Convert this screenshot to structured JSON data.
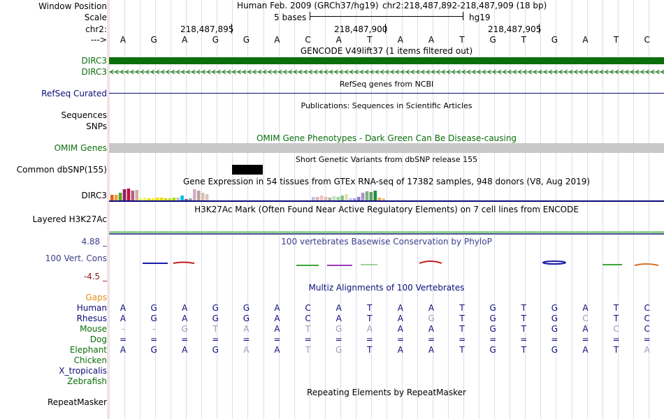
{
  "labels": {
    "window_position": "Window Position",
    "scale": "Scale",
    "chr": "chr2:",
    "arrow": "--->",
    "dirc3_a": "DIRC3",
    "dirc3_b": "DIRC3",
    "refseq": "RefSeq Curated",
    "sequences": "Sequences",
    "snps": "SNPs",
    "omim": "OMIM Genes",
    "common_dbsnp": "Common dbSNP(155)",
    "gtex_gene": "DIRC3",
    "h3k27ac": "Layered H3K27Ac",
    "cons_max": "4.88 _",
    "cons_label": "100 Vert. Cons",
    "cons_min": "-4.5 _"
  },
  "header": {
    "assembly": "Human Feb. 2009 (GRCh37/hg19)",
    "position": "chr2:218,487,892-218,487,909 (18 bp)",
    "scale_text": "5 bases",
    "scale_db": "hg19",
    "ticks": [
      "218,487,895",
      "218,487,900",
      "218,487,905"
    ]
  },
  "colors": {
    "gencode": "#0a6e0a",
    "refseq": "#0c0c78",
    "omim_bar": "#c8c8c8",
    "cons": "#3c3c8c",
    "species_label": "#0c0c78",
    "ape_label": "#0c0c78",
    "gaps": "#e0901c",
    "snp_block": "#000000"
  },
  "sequence": [
    "A",
    "G",
    "A",
    "G",
    "G",
    "A",
    "C",
    "A",
    "T",
    "A",
    "A",
    "T",
    "G",
    "T",
    "G",
    "A",
    "T",
    "C"
  ],
  "tracks": {
    "gencode_title": "GENCODE V49lift37 (1 items filtered out)",
    "refseq_title": "RefSeq genes from NCBI",
    "publications_title": "Publications: Sequences in Scientific Articles",
    "omim_title": "OMIM Gene Phenotypes - Dark Green Can Be Disease-causing",
    "dbsnp_title": "Short Genetic Variants from dbSNP release 155",
    "gtex_title": "Gene Expression in 54 tissues from GTEx RNA-seq of 17382 samples, 948 donors (V8, Aug 2019)",
    "h3k27ac_title": "H3K27Ac Mark (Often Found Near Active Regulatory Elements) on 7 cell lines from ENCODE",
    "phylop_title": "100 vertebrates Basewise Conservation by PhyloP",
    "multiz_title": "Multiz Alignments of 100 Vertebrates",
    "repeat_title": "Repeating Elements by RepeatMasker"
  },
  "alignment": {
    "gaps_label": "Gaps",
    "species": [
      {
        "name": "Human",
        "bases": [
          "A",
          "G",
          "A",
          "G",
          "G",
          "A",
          "C",
          "A",
          "T",
          "A",
          "A",
          "T",
          "G",
          "T",
          "G",
          "A",
          "T",
          "C"
        ],
        "dim": []
      },
      {
        "name": "Rhesus",
        "bases": [
          "A",
          "G",
          "A",
          "G",
          "G",
          "A",
          "C",
          "A",
          "T",
          "A",
          "G",
          "T",
          "G",
          "T",
          "G",
          "C",
          "T",
          "C"
        ],
        "dim": [
          10,
          15
        ]
      },
      {
        "name": "Mouse",
        "bases": [
          "-",
          "-",
          "G",
          "T",
          "A",
          "A",
          "T",
          "G",
          "A",
          "A",
          "A",
          "T",
          "G",
          "T",
          "G",
          "A",
          "C",
          "C"
        ],
        "dim": [
          0,
          1,
          2,
          3,
          4,
          6,
          7,
          8,
          16
        ]
      },
      {
        "name": "Dog",
        "bases": [
          "=",
          "=",
          "=",
          "=",
          "=",
          "=",
          "=",
          "=",
          "=",
          "=",
          "=",
          "=",
          "=",
          "=",
          "=",
          "=",
          "=",
          "="
        ],
        "dim": []
      },
      {
        "name": "Elephant",
        "bases": [
          "A",
          "G",
          "A",
          "G",
          "A",
          "A",
          "T",
          "G",
          "T",
          "A",
          "A",
          "T",
          "G",
          "T",
          "G",
          "A",
          "T",
          "A"
        ],
        "dim": [
          4,
          6,
          7,
          17
        ]
      },
      {
        "name": "Chicken",
        "bases": [],
        "dim": []
      },
      {
        "name": "X_tropicalis",
        "bases": [],
        "dim": []
      },
      {
        "name": "Zebrafish",
        "bases": [],
        "dim": []
      }
    ]
  },
  "repeat_label": "RepeatMasker"
}
